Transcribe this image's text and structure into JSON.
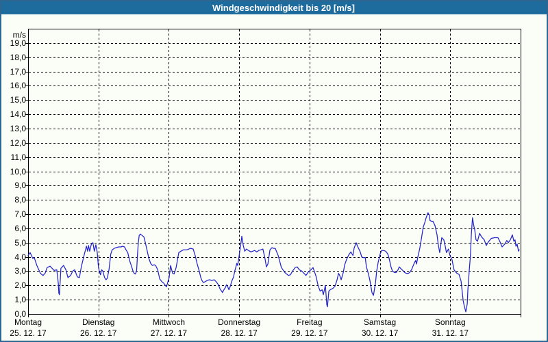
{
  "window": {
    "title": "Windgeschwindigkeit bis 20 [m/s]"
  },
  "colors": {
    "titlebar_bg": "#1e6b9d",
    "titlebar_text": "#ffffff",
    "frame_border": "#2e6690",
    "page_bg": "#fbfdf7",
    "plot_line": "#2323cd",
    "grid": "#000000",
    "text": "#000000"
  },
  "chart_data": {
    "type": "line",
    "title": "Windgeschwindigkeit bis 20 [m/s]",
    "xlabel": "",
    "ylabel_unit": "m/s",
    "ylim": [
      0,
      20
    ],
    "ytick_interval": 1,
    "ytick_labels_top_to_bottom": [
      "19,0",
      "18,0",
      "17,0",
      "16,0",
      "15,0",
      "14,0",
      "13,0",
      "12,0",
      "11,0",
      "10,0",
      "9,0",
      "8,0",
      "7,0",
      "6,0",
      "5,0",
      "4,0",
      "3,0",
      "2,0",
      "1,0",
      "0,0"
    ],
    "grid": "dashed",
    "legend_position": "none",
    "x_unit": "hours_since_monday_00h",
    "xlim_hours": [
      0,
      168
    ],
    "x_days": [
      {
        "name": "Montag",
        "date": "25. 12. 17"
      },
      {
        "name": "Dienstag",
        "date": "26. 12. 17"
      },
      {
        "name": "Mittwoch",
        "date": "27. 12. 17"
      },
      {
        "name": "Donnerstag",
        "date": "28. 12. 17"
      },
      {
        "name": "Freitag",
        "date": "29. 12. 17"
      },
      {
        "name": "Samstag",
        "date": "30. 12. 17"
      },
      {
        "name": "Sonntag",
        "date": "31. 12. 17"
      }
    ],
    "series": [
      {
        "name": "Windgeschwindigkeit",
        "unit": "m/s",
        "points_hours_value": [
          [
            0,
            4.1
          ],
          [
            0.7,
            4.3
          ],
          [
            1.6,
            3.9
          ],
          [
            2.1,
            3.95
          ],
          [
            3,
            3.4
          ],
          [
            4.2,
            2.85
          ],
          [
            5.1,
            2.7
          ],
          [
            5.8,
            2.85
          ],
          [
            6.5,
            3.25
          ],
          [
            7.5,
            3.35
          ],
          [
            8.2,
            3.2
          ],
          [
            8.9,
            3.05
          ],
          [
            9.8,
            3.1
          ],
          [
            10.3,
            2.15
          ],
          [
            10.5,
            1.45
          ],
          [
            10.7,
            1.35
          ],
          [
            11.2,
            3.2
          ],
          [
            12.1,
            3.4
          ],
          [
            12.9,
            3.1
          ],
          [
            13.6,
            2.55
          ],
          [
            14.5,
            2.7
          ],
          [
            15.2,
            3.0
          ],
          [
            15.9,
            3.1
          ],
          [
            16.8,
            2.6
          ],
          [
            17.5,
            2.55
          ],
          [
            18.2,
            3.35
          ],
          [
            19.2,
            4.2
          ],
          [
            19.9,
            4.75
          ],
          [
            20.3,
            4.4
          ],
          [
            20.6,
            4.8
          ],
          [
            21.0,
            4.4
          ],
          [
            21.6,
            4.9
          ],
          [
            22.1,
            5.0
          ],
          [
            22.6,
            4.4
          ],
          [
            23.1,
            4.85
          ],
          [
            23.6,
            4.3
          ],
          [
            24.0,
            3.3
          ],
          [
            24.3,
            3.0
          ],
          [
            24.7,
            2.75
          ],
          [
            25.1,
            3.1
          ],
          [
            25.5,
            3.0
          ],
          [
            26.1,
            2.55
          ],
          [
            26.6,
            2.4
          ],
          [
            27.0,
            2.5
          ],
          [
            27.6,
            3.1
          ],
          [
            28.2,
            4.2
          ],
          [
            28.7,
            4.5
          ],
          [
            29.4,
            4.6
          ],
          [
            30.1,
            4.65
          ],
          [
            30.9,
            4.7
          ],
          [
            31.7,
            4.7
          ],
          [
            32.2,
            4.75
          ],
          [
            32.9,
            4.7
          ],
          [
            33.4,
            4.5
          ],
          [
            34.0,
            4.3
          ],
          [
            34.7,
            3.7
          ],
          [
            35.2,
            3.4
          ],
          [
            35.8,
            3.0
          ],
          [
            36.2,
            2.85
          ],
          [
            36.6,
            2.8
          ],
          [
            37.0,
            3.0
          ],
          [
            37.3,
            4.05
          ],
          [
            37.6,
            5.0
          ],
          [
            37.9,
            5.5
          ],
          [
            38.3,
            5.6
          ],
          [
            38.9,
            5.5
          ],
          [
            39.5,
            5.4
          ],
          [
            40.0,
            5.0
          ],
          [
            40.7,
            4.35
          ],
          [
            41.2,
            3.9
          ],
          [
            41.8,
            3.55
          ],
          [
            42.4,
            3.4
          ],
          [
            43.0,
            3.45
          ],
          [
            43.5,
            3.4
          ],
          [
            44.2,
            3.1
          ],
          [
            44.9,
            2.45
          ],
          [
            45.7,
            2.25
          ],
          [
            46.3,
            2.15
          ],
          [
            47.2,
            1.9
          ],
          [
            48.1,
            2.55
          ],
          [
            48.6,
            3.4
          ],
          [
            49.3,
            2.85
          ],
          [
            49.8,
            2.8
          ],
          [
            50.5,
            3.25
          ],
          [
            51.4,
            4.3
          ],
          [
            52.1,
            4.4
          ],
          [
            53.0,
            4.5
          ],
          [
            54.2,
            4.5
          ],
          [
            55.4,
            4.6
          ],
          [
            56.3,
            4.55
          ],
          [
            57.0,
            4.1
          ],
          [
            57.7,
            3.5
          ],
          [
            58.4,
            3.0
          ],
          [
            58.9,
            2.55
          ],
          [
            59.3,
            2.35
          ],
          [
            59.8,
            2.2
          ],
          [
            60.3,
            2.25
          ],
          [
            61.1,
            2.35
          ],
          [
            61.9,
            2.4
          ],
          [
            62.7,
            2.35
          ],
          [
            63.5,
            2.4
          ],
          [
            64.2,
            2.25
          ],
          [
            64.9,
            2.05
          ],
          [
            65.5,
            1.75
          ],
          [
            66.0,
            1.6
          ],
          [
            66.3,
            1.5
          ],
          [
            66.8,
            1.7
          ],
          [
            67.3,
            1.85
          ],
          [
            67.7,
            2.05
          ],
          [
            68.1,
            1.9
          ],
          [
            68.5,
            1.7
          ],
          [
            68.9,
            1.9
          ],
          [
            69.5,
            2.3
          ],
          [
            70.1,
            2.6
          ],
          [
            70.5,
            3.0
          ],
          [
            70.9,
            3.3
          ],
          [
            71.2,
            3.55
          ],
          [
            71.5,
            3.4
          ],
          [
            71.8,
            3.8
          ],
          [
            72.2,
            4.4
          ],
          [
            72.5,
            4.8
          ],
          [
            72.9,
            5.45
          ],
          [
            73.4,
            4.8
          ],
          [
            73.9,
            4.4
          ],
          [
            74.5,
            4.55
          ],
          [
            75.2,
            4.45
          ],
          [
            76.0,
            4.35
          ],
          [
            76.6,
            4.4
          ],
          [
            77.3,
            4.45
          ],
          [
            78.0,
            4.35
          ],
          [
            78.7,
            4.45
          ],
          [
            79.4,
            4.5
          ],
          [
            80.1,
            4.55
          ],
          [
            80.8,
            3.9
          ],
          [
            81.3,
            3.3
          ],
          [
            81.8,
            3.5
          ],
          [
            82.5,
            4.5
          ],
          [
            83.2,
            4.65
          ],
          [
            83.6,
            4.6
          ],
          [
            84.3,
            4.6
          ],
          [
            85.3,
            4.1
          ],
          [
            86.4,
            3.25
          ],
          [
            87.6,
            2.9
          ],
          [
            88.8,
            2.7
          ],
          [
            89.5,
            2.75
          ],
          [
            90.2,
            3.0
          ],
          [
            91.1,
            3.25
          ],
          [
            91.8,
            3.3
          ],
          [
            92.5,
            3.1
          ],
          [
            93.4,
            3.0
          ],
          [
            94.1,
            2.85
          ],
          [
            94.8,
            2.7
          ],
          [
            95.6,
            2.95
          ],
          [
            96.5,
            3.1
          ],
          [
            97.2,
            3.25
          ],
          [
            98.2,
            2.65
          ],
          [
            98.9,
            2.0
          ],
          [
            99.6,
            1.6
          ],
          [
            100.3,
            1.7
          ],
          [
            100.7,
            1.35
          ],
          [
            101.4,
            2.0
          ],
          [
            101.9,
            0.65
          ],
          [
            102.1,
            0.5
          ],
          [
            102.6,
            1.6
          ],
          [
            103.1,
            1.7
          ],
          [
            104.0,
            1.8
          ],
          [
            104.7,
            1.95
          ],
          [
            105.4,
            2.4
          ],
          [
            105.9,
            2.85
          ],
          [
            106.3,
            2.7
          ],
          [
            106.8,
            2.4
          ],
          [
            107.5,
            2.9
          ],
          [
            108.0,
            3.45
          ],
          [
            108.7,
            3.85
          ],
          [
            109.4,
            4.15
          ],
          [
            110.1,
            4.35
          ],
          [
            110.8,
            4.1
          ],
          [
            111.2,
            4.6
          ],
          [
            111.9,
            5.0
          ],
          [
            112.4,
            4.75
          ],
          [
            113.3,
            4.35
          ],
          [
            113.8,
            4.0
          ],
          [
            114.3,
            3.95
          ],
          [
            115.0,
            3.95
          ],
          [
            115.4,
            3.3
          ],
          [
            116.1,
            2.8
          ],
          [
            116.6,
            2.35
          ],
          [
            117.3,
            1.5
          ],
          [
            117.8,
            1.3
          ],
          [
            118.5,
            2.2
          ],
          [
            118.9,
            3.0
          ],
          [
            119.4,
            3.6
          ],
          [
            120.1,
            4.2
          ],
          [
            120.6,
            4.45
          ],
          [
            121.3,
            4.45
          ],
          [
            122.0,
            4.4
          ],
          [
            122.7,
            4.2
          ],
          [
            123.1,
            3.95
          ],
          [
            123.8,
            3.3
          ],
          [
            124.3,
            3.0
          ],
          [
            125.0,
            2.9
          ],
          [
            125.5,
            2.9
          ],
          [
            126.2,
            3.1
          ],
          [
            126.6,
            3.3
          ],
          [
            127.3,
            3.15
          ],
          [
            127.8,
            3.05
          ],
          [
            128.5,
            2.9
          ],
          [
            129.0,
            2.85
          ],
          [
            129.7,
            2.85
          ],
          [
            130.1,
            2.9
          ],
          [
            130.8,
            3.1
          ],
          [
            131.3,
            3.35
          ],
          [
            131.8,
            3.6
          ],
          [
            132.2,
            3.75
          ],
          [
            132.5,
            3.5
          ],
          [
            132.9,
            3.95
          ],
          [
            133.6,
            4.6
          ],
          [
            134.1,
            5.2
          ],
          [
            134.8,
            6.1
          ],
          [
            135.3,
            6.4
          ],
          [
            135.7,
            6.7
          ],
          [
            136.4,
            7.1
          ],
          [
            136.9,
            6.9
          ],
          [
            137.1,
            6.55
          ],
          [
            137.6,
            6.5
          ],
          [
            138.1,
            6.5
          ],
          [
            138.8,
            6.2
          ],
          [
            139.5,
            5.55
          ],
          [
            139.9,
            4.9
          ],
          [
            140.4,
            4.3
          ],
          [
            141.1,
            5.35
          ],
          [
            141.8,
            5.2
          ],
          [
            142.3,
            4.75
          ],
          [
            142.7,
            4.3
          ],
          [
            143.4,
            4.55
          ],
          [
            143.9,
            4.1
          ],
          [
            144.6,
            3.8
          ],
          [
            145.3,
            3.1
          ],
          [
            145.8,
            2.95
          ],
          [
            146.3,
            2.85
          ],
          [
            147.0,
            2.77
          ],
          [
            147.7,
            2.3
          ],
          [
            148.4,
            0.95
          ],
          [
            148.8,
            0.55
          ],
          [
            149.3,
            0.15
          ],
          [
            149.8,
            0.7
          ],
          [
            150.0,
            1.65
          ],
          [
            150.5,
            3.1
          ],
          [
            150.9,
            4.1
          ],
          [
            151.2,
            5.6
          ],
          [
            151.6,
            6.75
          ],
          [
            152.1,
            6.1
          ],
          [
            152.3,
            6.0
          ],
          [
            152.8,
            5.2
          ],
          [
            153.3,
            5.1
          ],
          [
            154.0,
            5.65
          ],
          [
            154.7,
            5.4
          ],
          [
            155.6,
            5.2
          ],
          [
            156.3,
            4.8
          ],
          [
            157.0,
            5.05
          ],
          [
            158.0,
            5.3
          ],
          [
            159.1,
            5.35
          ],
          [
            160.3,
            5.35
          ],
          [
            161.0,
            5.05
          ],
          [
            161.7,
            4.7
          ],
          [
            162.6,
            4.9
          ],
          [
            163.3,
            5.15
          ],
          [
            163.8,
            5.0
          ],
          [
            164.5,
            5.2
          ],
          [
            165.2,
            5.55
          ],
          [
            165.7,
            5.1
          ],
          [
            166.1,
            5.2
          ],
          [
            166.4,
            4.75
          ],
          [
            166.8,
            4.9
          ],
          [
            167.3,
            4.4
          ],
          [
            167.5,
            4.5
          ]
        ]
      }
    ]
  }
}
